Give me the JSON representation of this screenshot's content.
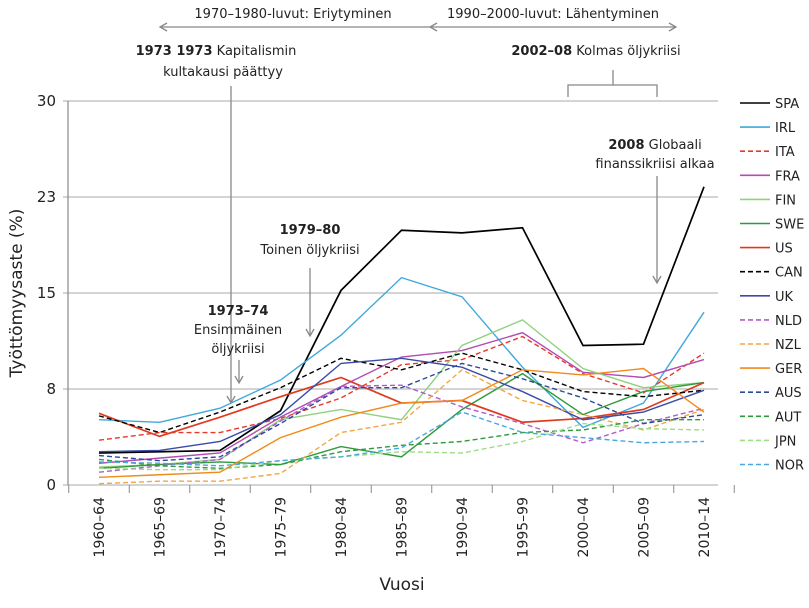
{
  "chart_data": {
    "type": "line",
    "title": "",
    "xlabel": "Vuosi",
    "ylabel": "Työttömyysaste (%)",
    "ylim": [
      0,
      30
    ],
    "yticks": [
      0,
      7.5,
      15,
      22.5,
      30
    ],
    "ytick_labels": [
      "0",
      "8",
      "15",
      "23",
      "30"
    ],
    "grid": "horizontal",
    "legend_placement": "right",
    "categories": [
      "1960–64",
      "1965–69",
      "1970–74",
      "1975–79",
      "1980–84",
      "1985–89",
      "1990–94",
      "1995–99",
      "2000–04",
      "2005–09",
      "2010–14"
    ],
    "series": [
      {
        "name": "SPA",
        "color": "#000000",
        "dashed": false,
        "values": [
          2.5,
          2.6,
          2.7,
          5.8,
          15.2,
          19.9,
          19.7,
          20.1,
          10.9,
          11.0,
          23.3
        ]
      },
      {
        "name": "IRL",
        "color": "#3fa9dc",
        "dashed": false,
        "values": [
          5.1,
          4.9,
          6.0,
          8.2,
          11.7,
          16.2,
          14.7,
          9.2,
          4.5,
          6.4,
          13.5
        ]
      },
      {
        "name": "ITA",
        "color": "#e8382b",
        "dashed": true,
        "values": [
          3.5,
          4.1,
          4.1,
          5.2,
          6.8,
          9.4,
          9.8,
          11.6,
          8.7,
          7.2,
          10.3
        ]
      },
      {
        "name": "FRA",
        "color": "#b24cb4",
        "dashed": false,
        "values": [
          1.7,
          2.1,
          2.5,
          5.3,
          7.7,
          10.0,
          10.5,
          11.9,
          8.8,
          8.4,
          9.8
        ]
      },
      {
        "name": "FIN",
        "color": "#8fd17e",
        "dashed": false,
        "values": [
          1.4,
          1.6,
          2.0,
          5.1,
          5.9,
          5.1,
          10.9,
          12.9,
          9.1,
          7.6,
          8.0
        ]
      },
      {
        "name": "SWE",
        "color": "#2e9a3c",
        "dashed": false,
        "values": [
          1.3,
          1.6,
          1.8,
          1.6,
          3.0,
          2.2,
          5.9,
          8.7,
          5.5,
          7.3,
          8.0
        ]
      },
      {
        "name": "US",
        "color": "#e03a1e",
        "dashed": false,
        "values": [
          5.6,
          3.8,
          5.3,
          6.9,
          8.4,
          6.4,
          6.6,
          4.9,
          5.2,
          5.9,
          8.0
        ]
      },
      {
        "name": "CAN",
        "color": "#000000",
        "dashed": true,
        "values": [
          5.4,
          4.1,
          5.7,
          7.6,
          9.9,
          9.0,
          10.3,
          9.0,
          7.3,
          6.9,
          7.4
        ]
      },
      {
        "name": "UK",
        "color": "#3a4ca8",
        "dashed": false,
        "values": [
          2.6,
          2.7,
          3.4,
          5.5,
          9.5,
          9.9,
          9.2,
          7.3,
          5.1,
          5.7,
          7.4
        ]
      },
      {
        "name": "NLD",
        "color": "#b05cc8",
        "dashed": true,
        "values": [
          1.0,
          1.5,
          2.0,
          5.0,
          7.7,
          7.8,
          6.1,
          4.8,
          3.3,
          4.8,
          6.0
        ]
      },
      {
        "name": "NZL",
        "color": "#f4a640",
        "dashed": true,
        "values": [
          0.1,
          0.3,
          0.3,
          0.9,
          4.1,
          4.9,
          9.0,
          6.6,
          5.5,
          4.3,
          5.9
        ]
      },
      {
        "name": "GER",
        "color": "#f08a1c",
        "dashed": false,
        "values": [
          0.6,
          0.8,
          1.0,
          3.7,
          5.3,
          6.4,
          6.6,
          9.0,
          8.6,
          9.1,
          5.7
        ]
      },
      {
        "name": "AUS",
        "color": "#2a4a9a",
        "dashed": true,
        "values": [
          2.3,
          1.9,
          2.2,
          4.8,
          7.6,
          7.6,
          9.5,
          8.3,
          6.8,
          4.8,
          5.5
        ]
      },
      {
        "name": "AUT",
        "color": "#2e9a3c",
        "dashed": true,
        "values": [
          2.0,
          1.5,
          1.3,
          1.6,
          2.6,
          3.1,
          3.4,
          4.1,
          4.3,
          5.1,
          5.1
        ]
      },
      {
        "name": "JPN",
        "color": "#9fdc8a",
        "dashed": true,
        "values": [
          1.3,
          1.2,
          1.2,
          1.9,
          2.2,
          2.6,
          2.5,
          3.4,
          4.8,
          4.4,
          4.3
        ]
      },
      {
        "name": "NOR",
        "color": "#4aa8e0",
        "dashed": true,
        "values": [
          1.8,
          1.7,
          1.5,
          1.9,
          2.2,
          2.9,
          5.7,
          4.1,
          3.7,
          3.3,
          3.4
        ]
      }
    ],
    "annotations": {
      "period1": "1970–1980-luvut: Eriytyminen",
      "period2": "1990–2000-luvut: Lähentyminen",
      "a1973_bold": "1973 1973",
      "a1973_text1": " Kapitalismin",
      "a1973_text2": "kultakausi päättyy",
      "a7374_bold": "1973–74",
      "a7374_text1": "Ensimmäinen",
      "a7374_text2": "öljykriisi",
      "a7980_bold": "1979–80",
      "a7980_text": "Toinen öljykriisi",
      "a0208_bold": "2002–08",
      "a0208_text": " Kolmas öljykriisi",
      "a2008_bold": "2008",
      "a2008_text1": " Globaali",
      "a2008_text2": "finanssikriisi alkaa"
    }
  }
}
